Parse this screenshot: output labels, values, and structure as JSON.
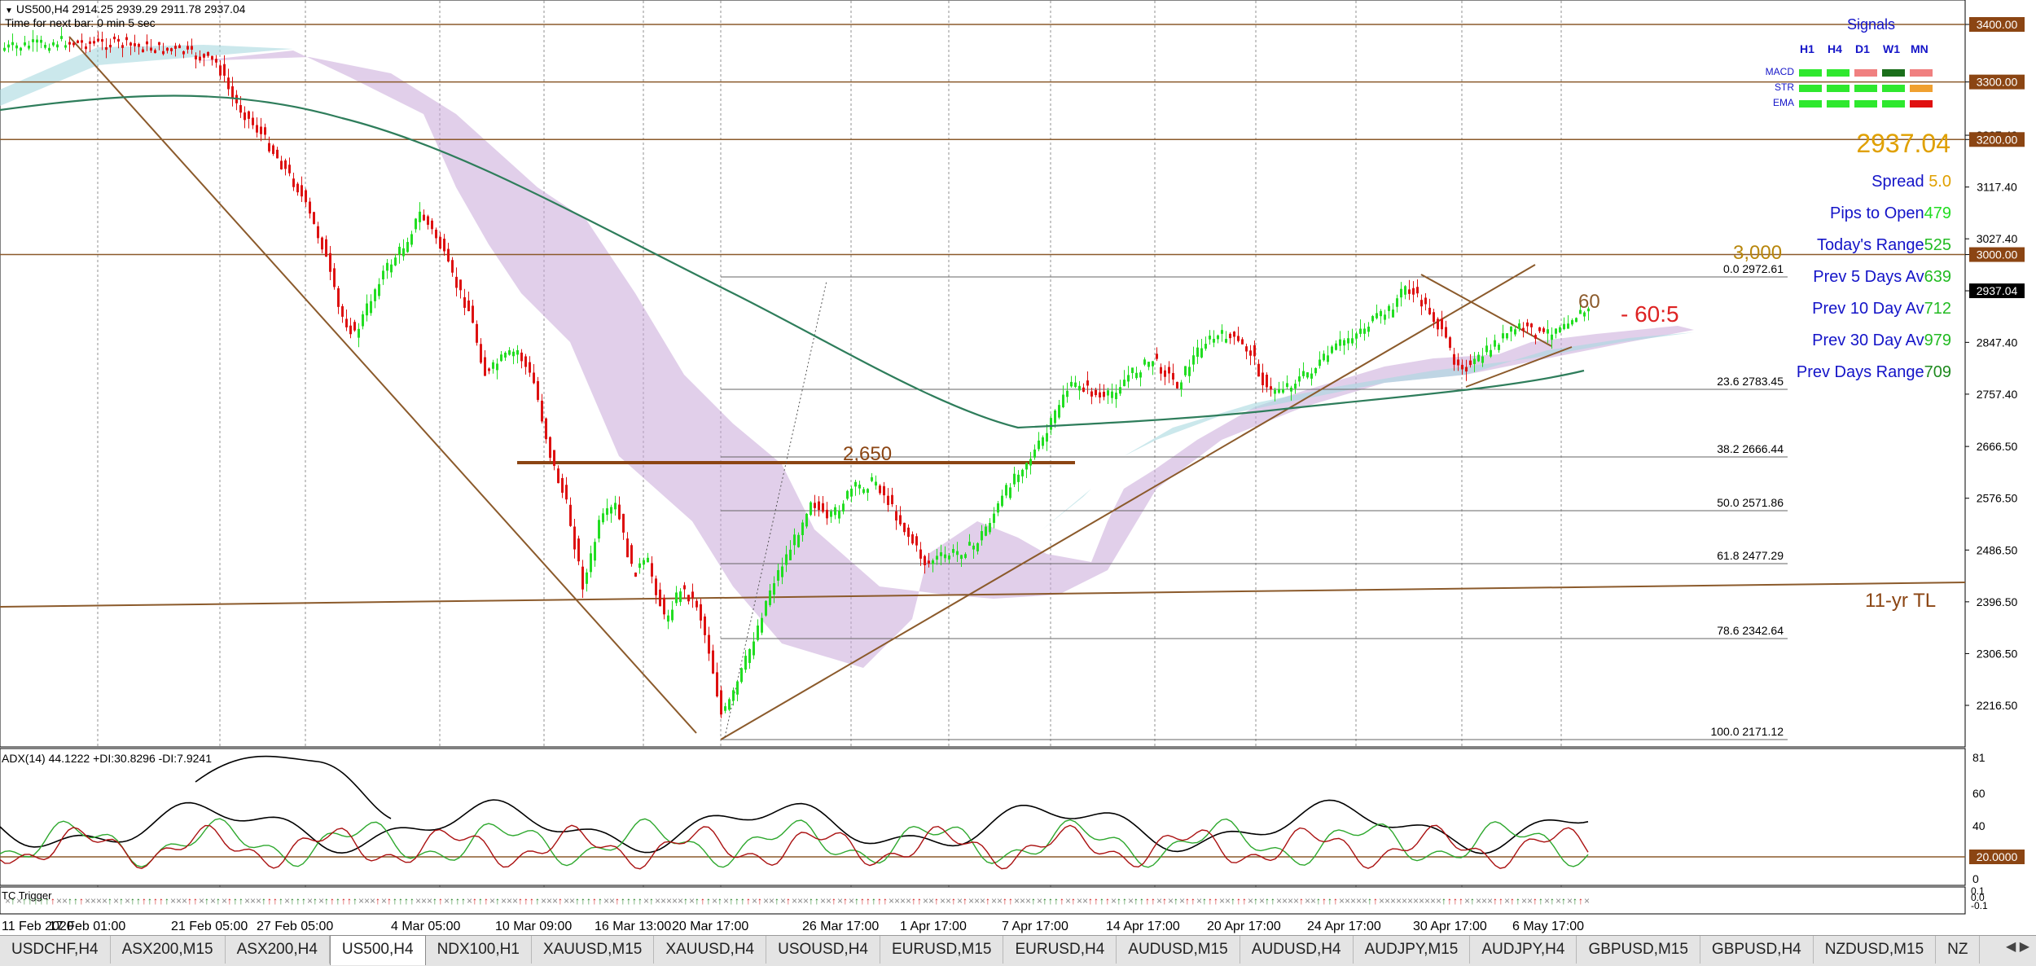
{
  "header": {
    "symbol_line": "US500,H4  2914.25 2939.29 2911.78 2937.04",
    "timer_line": "Time for next bar: 0 min 5 sec"
  },
  "chart_data": {
    "type": "candlestick",
    "symbol": "US500",
    "timeframe": "H4",
    "ohlc": {
      "open": 2914.25,
      "high": 2939.29,
      "low": 2911.78,
      "close": 2937.04
    },
    "x_ticks": [
      "11 Feb 2020",
      "17 Feb 01:00",
      "21 Feb 05:00",
      "27 Feb 05:00",
      "4 Mar 05:00",
      "10 Mar 09:00",
      "16 Mar 13:00",
      "20 Mar 17:00",
      "26 Mar 17:00",
      "1 Apr 17:00",
      "7 Apr 17:00",
      "14 Apr 17:00",
      "20 Apr 17:00",
      "24 Apr 17:00",
      "30 Apr 17:00",
      "6 May 17:00"
    ],
    "y_ticks": [
      "3400.00",
      "3300.00",
      "3207.40",
      "3200.00",
      "3117.40",
      "3027.40",
      "3000.00",
      "2937.04",
      "2847.40",
      "2757.40",
      "2666.50",
      "2576.50",
      "2486.50",
      "2396.50",
      "2306.50",
      "2216.50"
    ],
    "horizontal_levels": [
      3400,
      3300,
      3200,
      3000
    ],
    "fibonacci": [
      {
        "ratio": "0.0",
        "price": "2972.61"
      },
      {
        "ratio": "23.6",
        "price": "2783.45"
      },
      {
        "ratio": "38.2",
        "price": "2666.44"
      },
      {
        "ratio": "50.0",
        "price": "2571.86"
      },
      {
        "ratio": "61.8",
        "price": "2477.29"
      },
      {
        "ratio": "78.6",
        "price": "2342.64"
      },
      {
        "ratio": "100.0",
        "price": "2171.12"
      }
    ],
    "annotations": [
      "3,000",
      "2,650",
      "60",
      "- 60:5",
      "11-yr TL"
    ],
    "current_price": "2937.04",
    "adx": {
      "title": "ADX(14) 44.1222 +DI:30.8296 -DI:7.9241",
      "y_ticks": [
        "81",
        "60",
        "40",
        "20.0000",
        "0"
      ],
      "level": 20
    },
    "tc_trigger": {
      "title": "TC Trigger",
      "y_ticks": [
        "0.1",
        "0.0",
        "-0.1"
      ]
    }
  },
  "signals": {
    "title": "Signals",
    "timeframes": [
      "H1",
      "H4",
      "D1",
      "W1",
      "MN"
    ],
    "rows": [
      {
        "name": "MACD",
        "colors": [
          "#2ee82e",
          "#2ee82e",
          "#f08080",
          "#1a6e1a",
          "#f08080"
        ]
      },
      {
        "name": "STR",
        "colors": [
          "#2ee82e",
          "#2ee82e",
          "#2ee82e",
          "#2ee82e",
          "#f0a030"
        ]
      },
      {
        "name": "EMA",
        "colors": [
          "#2ee82e",
          "#2ee82e",
          "#2ee82e",
          "#2ee82e",
          "#e01010"
        ]
      }
    ],
    "price": "2937.04",
    "stats": [
      {
        "label": "Spread ",
        "value": "5.0",
        "label_color": "#1414c8",
        "value_color": "#e0a000"
      },
      {
        "label": "Pips to Open",
        "value": "479",
        "label_color": "#1414c8",
        "value_color": "#22dd22"
      },
      {
        "label": "Today's Range",
        "value": "525",
        "label_color": "#1414c8",
        "value_color": "#22bb22"
      },
      {
        "label": "Prev 5 Days Av",
        "value": "639",
        "label_color": "#1414c8",
        "value_color": "#22bb22"
      },
      {
        "label": "Prev 10 Day Av",
        "value": "712",
        "label_color": "#1414c8",
        "value_color": "#22bb22"
      },
      {
        "label": "Prev 30 Day Av",
        "value": "979",
        "label_color": "#1414c8",
        "value_color": "#22bb22"
      },
      {
        "label": "Prev Days Range",
        "value": "709",
        "label_color": "#1414c8",
        "value_color": "#1f8a1f"
      }
    ]
  },
  "tabs": [
    "USDCHF,H4",
    "ASX200,M15",
    "ASX200,H4",
    "US500,H4",
    "NDX100,H1",
    "XAUUSD,M15",
    "XAUUSD,H4",
    "USOUSD,H4",
    "EURUSD,M15",
    "EURUSD,H4",
    "AUDUSD,M15",
    "AUDUSD,H4",
    "AUDJPY,M15",
    "AUDJPY,H4",
    "GBPUSD,M15",
    "GBPUSD,H4",
    "NZDUSD,M15",
    "NZ"
  ],
  "active_tab": "US500,H4",
  "colors": {
    "bull": "#22dd22",
    "bear": "#dd1111",
    "level": "#8b5a2b",
    "ema": "#2e7d5b",
    "adx": "#000000",
    "plus_di": "#2ea82e",
    "minus_di": "#aa1111"
  }
}
